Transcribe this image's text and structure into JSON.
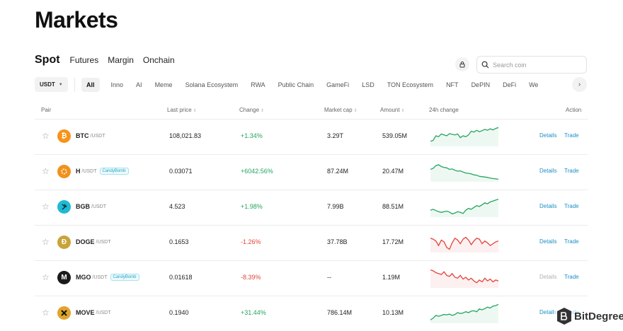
{
  "page_title": "Markets",
  "tabs": [
    {
      "label": "Spot",
      "active": true
    },
    {
      "label": "Futures"
    },
    {
      "label": "Margin"
    },
    {
      "label": "Onchain"
    }
  ],
  "search": {
    "placeholder": "Search coin",
    "icon": "search-icon"
  },
  "quote_select": {
    "value": "USDT"
  },
  "categories": [
    "All",
    "Inno",
    "AI",
    "Meme",
    "Solana Ecosystem",
    "RWA",
    "Public Chain",
    "GameFi",
    "LSD",
    "TON Ecosystem",
    "NFT",
    "DePIN",
    "DeFi",
    "We"
  ],
  "columns": {
    "pair": "Pair",
    "last_price": "Last price",
    "change": "Change",
    "market_cap": "Market cap",
    "amount": "Amount",
    "chart": "24h change",
    "action": "Action"
  },
  "actions": {
    "details": "Details",
    "trade": "Trade"
  },
  "rows": [
    {
      "base": "BTC",
      "quote": "/USDT",
      "tag": "",
      "price": "108,021.83",
      "change": "+1.34%",
      "trend": "up",
      "market_cap": "3.29T",
      "amount": "539.05M",
      "icon_name": "btc-icon",
      "icon_color": "#f7931a",
      "spark": [
        0.2,
        0.25,
        0.5,
        0.45,
        0.6,
        0.55,
        0.5,
        0.62,
        0.58,
        0.55,
        0.6,
        0.4,
        0.5,
        0.45,
        0.55,
        0.75,
        0.7,
        0.8,
        0.72,
        0.78,
        0.85,
        0.8,
        0.88,
        0.82,
        0.9,
        0.95
      ]
    },
    {
      "base": "H",
      "quote": "/USDT",
      "tag": "CandyBomb",
      "price": "0.03071",
      "change": "+6042.56%",
      "trend": "up",
      "market_cap": "87.24M",
      "amount": "20.47M",
      "icon_name": "h-coin-icon",
      "icon_color": "#f0921c",
      "spark": [
        0.6,
        0.65,
        0.8,
        0.85,
        0.75,
        0.7,
        0.68,
        0.6,
        0.62,
        0.55,
        0.5,
        0.52,
        0.45,
        0.4,
        0.38,
        0.35,
        0.3,
        0.28,
        0.22,
        0.2,
        0.18,
        0.16,
        0.12,
        0.1,
        0.08,
        0.06
      ]
    },
    {
      "base": "BGB",
      "quote": "/USDT",
      "tag": "",
      "price": "4.523",
      "change": "+1.98%",
      "trend": "up",
      "market_cap": "7.99B",
      "amount": "88.51M",
      "icon_name": "bgb-icon",
      "icon_color": "#1fb9d3",
      "spark": [
        0.3,
        0.35,
        0.28,
        0.22,
        0.18,
        0.22,
        0.25,
        0.2,
        0.1,
        0.15,
        0.22,
        0.18,
        0.12,
        0.3,
        0.4,
        0.35,
        0.45,
        0.55,
        0.5,
        0.6,
        0.7,
        0.65,
        0.75,
        0.8,
        0.85,
        0.9
      ]
    },
    {
      "base": "DOGE",
      "quote": "/USDT",
      "tag": "",
      "price": "0.1653",
      "change": "-1.26%",
      "trend": "down",
      "market_cap": "37.78B",
      "amount": "17.72M",
      "icon_name": "doge-icon",
      "icon_color": "#c9a33a",
      "spark": [
        0.7,
        0.65,
        0.55,
        0.3,
        0.6,
        0.5,
        0.2,
        0.1,
        0.45,
        0.7,
        0.6,
        0.4,
        0.65,
        0.75,
        0.6,
        0.35,
        0.55,
        0.7,
        0.65,
        0.4,
        0.55,
        0.45,
        0.3,
        0.4,
        0.5,
        0.55
      ]
    },
    {
      "base": "MGO",
      "quote": "/USDT",
      "tag": "CandyBomb",
      "price": "0.01618",
      "change": "-8.39%",
      "trend": "down",
      "market_cap": "--",
      "amount": "1.19M",
      "icon_name": "mgo-icon",
      "icon_color": "#1a1a1a",
      "details_disabled": true,
      "spark": [
        0.9,
        0.85,
        0.75,
        0.7,
        0.65,
        0.8,
        0.6,
        0.55,
        0.7,
        0.5,
        0.45,
        0.6,
        0.4,
        0.5,
        0.35,
        0.45,
        0.3,
        0.2,
        0.35,
        0.25,
        0.45,
        0.3,
        0.4,
        0.25,
        0.35,
        0.3
      ]
    },
    {
      "base": "MOVE",
      "quote": "/USDT",
      "tag": "",
      "price": "0.1940",
      "change": "+31.44%",
      "trend": "up",
      "market_cap": "786.14M",
      "amount": "10.13M",
      "icon_name": "move-icon",
      "icon_color": "#e0a52a",
      "spark": [
        0.1,
        0.2,
        0.35,
        0.3,
        0.35,
        0.4,
        0.38,
        0.42,
        0.35,
        0.4,
        0.5,
        0.45,
        0.48,
        0.55,
        0.5,
        0.58,
        0.6,
        0.55,
        0.7,
        0.65,
        0.72,
        0.8,
        0.75,
        0.85,
        0.88,
        0.95
      ]
    }
  ],
  "colors": {
    "up": "#23a55e",
    "down": "#e2453c",
    "link": "#1a8fc7"
  },
  "watermark": {
    "text": "BitDegree"
  }
}
